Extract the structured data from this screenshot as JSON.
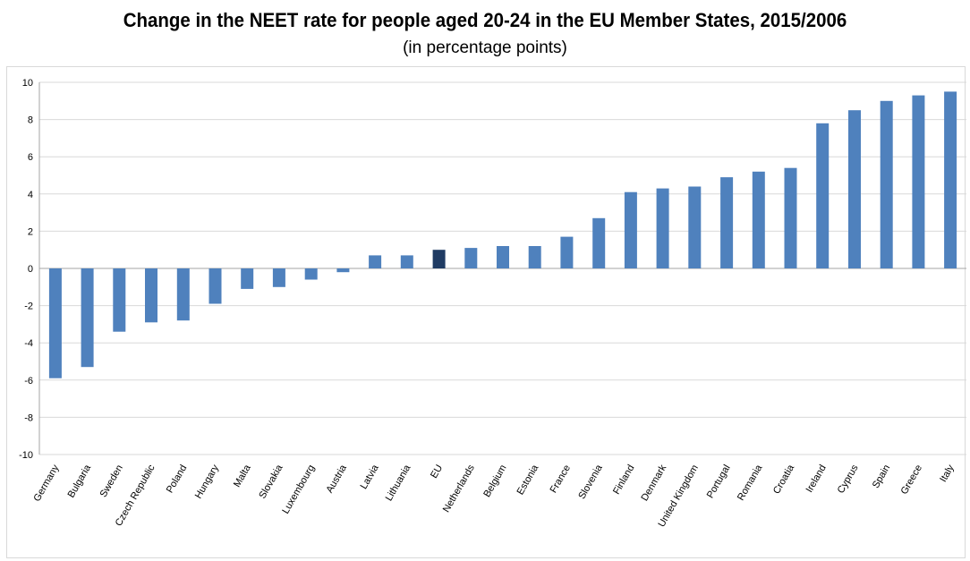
{
  "chart_data": {
    "type": "bar",
    "title": "Change in the NEET rate for people aged 20-24 in the EU Member States, 2015/2006",
    "subtitle": "(in percentage points)",
    "xlabel": "",
    "ylabel": "",
    "ylim": [
      -10,
      10
    ],
    "yticks": [
      10,
      8,
      6,
      4,
      2,
      0,
      -2,
      -4,
      -6,
      -8,
      -10
    ],
    "grid": true,
    "legend": "none",
    "categories": [
      "Germany",
      "Bulgaria",
      "Sweden",
      "Czech Republic",
      "Poland",
      "Hungary",
      "Malta",
      "Slovakia",
      "Luxembourg",
      "Austria",
      "Latvia",
      "Lithuania",
      "EU",
      "Netherlands",
      "Belgium",
      "Estonia",
      "France",
      "Slovenia",
      "Finland",
      "Denmark",
      "United Kingdom",
      "Portugal",
      "Romania",
      "Croatia",
      "Ireland",
      "Cyprus",
      "Spain",
      "Greece",
      "Italy"
    ],
    "values": [
      -5.9,
      -5.3,
      -3.4,
      -2.9,
      -2.8,
      -1.9,
      -1.1,
      -1.0,
      -0.6,
      -0.2,
      0.7,
      0.7,
      1.0,
      1.1,
      1.2,
      1.2,
      1.7,
      2.7,
      4.1,
      4.3,
      4.4,
      4.9,
      5.2,
      5.4,
      7.8,
      8.5,
      9.0,
      9.3,
      9.5
    ],
    "colors": {
      "bar": "#4f81bd",
      "highlight": "#1f3b63",
      "highlight_category": "EU",
      "grid": "#d9d9d9",
      "axis": "#a6a6a6"
    }
  }
}
